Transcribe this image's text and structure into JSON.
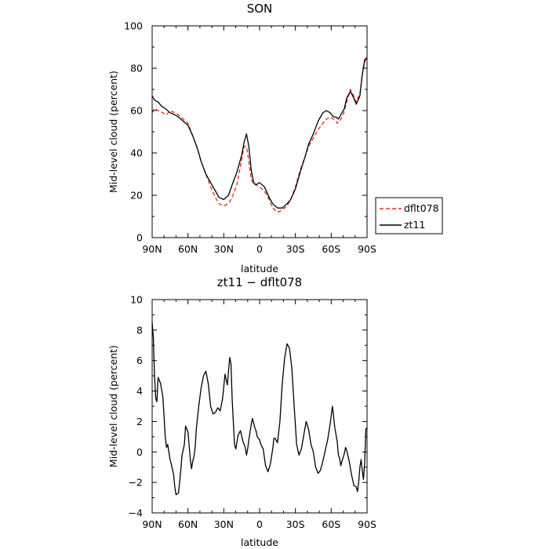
{
  "chart_data": [
    {
      "type": "line",
      "title": "SON",
      "xlabel": "latitude",
      "ylabel": "Mid-level cloud (percent)",
      "xlim": [
        90,
        -90
      ],
      "ylim": [
        0,
        100
      ],
      "x_ticks": [
        {
          "value": 90,
          "label": "90N"
        },
        {
          "value": 60,
          "label": "60N"
        },
        {
          "value": 30,
          "label": "30N"
        },
        {
          "value": 0,
          "label": "0"
        },
        {
          "value": -30,
          "label": "30S"
        },
        {
          "value": -60,
          "label": "60S"
        },
        {
          "value": -90,
          "label": "90S"
        }
      ],
      "y_ticks": [
        {
          "value": 0,
          "label": "0"
        },
        {
          "value": 20,
          "label": "20"
        },
        {
          "value": 40,
          "label": "40"
        },
        {
          "value": 60,
          "label": "60"
        },
        {
          "value": 80,
          "label": "80"
        },
        {
          "value": 100,
          "label": "100"
        }
      ],
      "legend_position": "outside-right",
      "series": [
        {
          "name": "dflt078",
          "color": "#e8281c",
          "dash": "dashed",
          "x": [
            90,
            88,
            85,
            81,
            78,
            75,
            71,
            68,
            64,
            60,
            56,
            52,
            49,
            45,
            41,
            37,
            34,
            30,
            26,
            23,
            19,
            15,
            13,
            11,
            9,
            7,
            5,
            3,
            0,
            -4,
            -8,
            -11,
            -15,
            -19,
            -23,
            -26,
            -30,
            -34,
            -38,
            -41,
            -45,
            -49,
            -53,
            -56,
            -59,
            -62,
            -64,
            -65,
            -67,
            -70,
            -72,
            -74,
            -76,
            -78,
            -81,
            -84,
            -86,
            -88,
            -90
          ],
          "y": [
            59,
            61,
            60,
            59,
            58,
            60,
            59,
            58,
            56,
            54,
            48,
            42,
            36,
            30,
            24,
            19,
            16,
            15,
            16,
            19,
            25,
            37,
            43,
            43,
            36,
            28,
            25,
            25,
            24,
            22,
            18,
            14,
            12,
            13,
            15,
            18,
            24,
            32,
            38,
            43,
            47,
            51,
            54,
            56,
            57,
            56,
            55,
            54,
            55,
            58,
            62,
            66,
            70,
            68,
            64,
            68,
            77,
            83,
            85
          ]
        },
        {
          "name": "zt11",
          "color": "#000000",
          "dash": "solid",
          "x": [
            90,
            88,
            85,
            82,
            79,
            75,
            71,
            68,
            64,
            60,
            56,
            52,
            49,
            45,
            41,
            37,
            34,
            30,
            26,
            23,
            19,
            15,
            13,
            11,
            9,
            7,
            5,
            3,
            0,
            -4,
            -8,
            -11,
            -15,
            -19,
            -23,
            -26,
            -30,
            -34,
            -38,
            -41,
            -45,
            -49,
            -53,
            -56,
            -59,
            -62,
            -64,
            -66,
            -68,
            -71,
            -73,
            -76,
            -78,
            -81,
            -84,
            -86,
            -88,
            -90
          ],
          "y": [
            67,
            65,
            64,
            62,
            61,
            59,
            58,
            57,
            55,
            53,
            48,
            42,
            36,
            30,
            26,
            22,
            19,
            18,
            20,
            25,
            31,
            39,
            45,
            49,
            43,
            32,
            26,
            25,
            26,
            24,
            19,
            16,
            14,
            14,
            16,
            18,
            23,
            31,
            38,
            44,
            49,
            55,
            59,
            60,
            59,
            57,
            57,
            56,
            58,
            61,
            66,
            69,
            67,
            63,
            67,
            77,
            84,
            85
          ]
        }
      ]
    },
    {
      "type": "line",
      "title": "zt11 − dflt078",
      "xlabel": "latitude",
      "ylabel": "Mid-level cloud (percent)",
      "xlim": [
        90,
        -90
      ],
      "ylim": [
        -4,
        10
      ],
      "x_ticks": [
        {
          "value": 90,
          "label": "90N"
        },
        {
          "value": 60,
          "label": "60N"
        },
        {
          "value": 30,
          "label": "30N"
        },
        {
          "value": 0,
          "label": "0"
        },
        {
          "value": -30,
          "label": "30S"
        },
        {
          "value": -60,
          "label": "60S"
        },
        {
          "value": -90,
          "label": "90S"
        }
      ],
      "y_ticks": [
        {
          "value": -4,
          "label": "−4"
        },
        {
          "value": -2,
          "label": "−2"
        },
        {
          "value": 0,
          "label": "0"
        },
        {
          "value": 2,
          "label": "2"
        },
        {
          "value": 4,
          "label": "4"
        },
        {
          "value": 6,
          "label": "6"
        },
        {
          "value": 8,
          "label": "8"
        },
        {
          "value": 10,
          "label": "10"
        }
      ],
      "series": [
        {
          "name": "",
          "color": "#000000",
          "dash": "solid",
          "x": [
            90,
            89,
            88,
            87,
            86,
            85,
            83,
            81,
            79,
            78,
            77,
            76,
            75,
            74,
            72,
            71,
            70,
            68,
            67,
            66,
            65,
            63,
            62,
            60,
            58,
            57,
            56,
            55,
            54,
            53,
            51,
            49,
            47,
            45,
            43,
            41,
            39,
            37,
            35,
            33,
            31,
            29,
            27,
            25,
            24,
            23,
            21,
            20,
            18,
            16,
            14,
            12,
            11,
            10,
            9,
            7,
            6,
            5,
            4,
            3,
            2,
            0,
            -1,
            -3,
            -5,
            -7,
            -9,
            -10,
            -11,
            -12,
            -13,
            -15,
            -17,
            -19,
            -21,
            -23,
            -25,
            -27,
            -29,
            -31,
            -33,
            -35,
            -37,
            -39,
            -41,
            -43,
            -45,
            -47,
            -49,
            -51,
            -53,
            -55,
            -57,
            -59,
            -61,
            -63,
            -65,
            -66,
            -67,
            -68,
            -69,
            -71,
            -72,
            -73,
            -75,
            -77,
            -79,
            -81,
            -82,
            -83,
            -84,
            -85,
            -86,
            -87,
            -88,
            -89,
            -90
          ],
          "y": [
            8.5,
            7.5,
            5.0,
            3.5,
            3.3,
            4.9,
            4.5,
            3.6,
            1.0,
            0.3,
            0.5,
            0.0,
            -0.5,
            -0.8,
            -1.5,
            -2.3,
            -2.8,
            -2.7,
            -2.0,
            -1.2,
            -0.2,
            0.5,
            1.7,
            1.3,
            -0.5,
            -1.1,
            -0.6,
            -0.3,
            0.3,
            1.5,
            3.0,
            4.2,
            5.0,
            5.3,
            4.5,
            3.0,
            2.5,
            2.6,
            2.9,
            2.7,
            3.5,
            5.1,
            4.4,
            6.2,
            5.8,
            3.5,
            0.5,
            0.2,
            1.1,
            1.4,
            0.7,
            0.3,
            -0.2,
            0.2,
            0.8,
            1.8,
            2.2,
            1.9,
            1.6,
            1.4,
            1.0,
            0.8,
            0.5,
            0.2,
            -0.9,
            -1.3,
            -0.8,
            -0.3,
            0.2,
            0.9,
            0.9,
            0.6,
            2.0,
            4.5,
            6.2,
            7.1,
            6.8,
            5.5,
            3.0,
            0.5,
            -0.2,
            0.2,
            1.1,
            2.0,
            1.5,
            0.5,
            0.0,
            -1.0,
            -1.4,
            -1.2,
            -0.6,
            0.1,
            0.8,
            1.8,
            3.0,
            1.6,
            0.7,
            -0.2,
            -0.4,
            -0.9,
            -0.6,
            -0.1,
            0.3,
            0.1,
            -0.6,
            -1.5,
            -2.2,
            -2.3,
            -2.6,
            -2.0,
            -1.0,
            -0.5,
            -1.2,
            -1.8,
            -0.7,
            1.5,
            1.6
          ]
        }
      ]
    }
  ]
}
